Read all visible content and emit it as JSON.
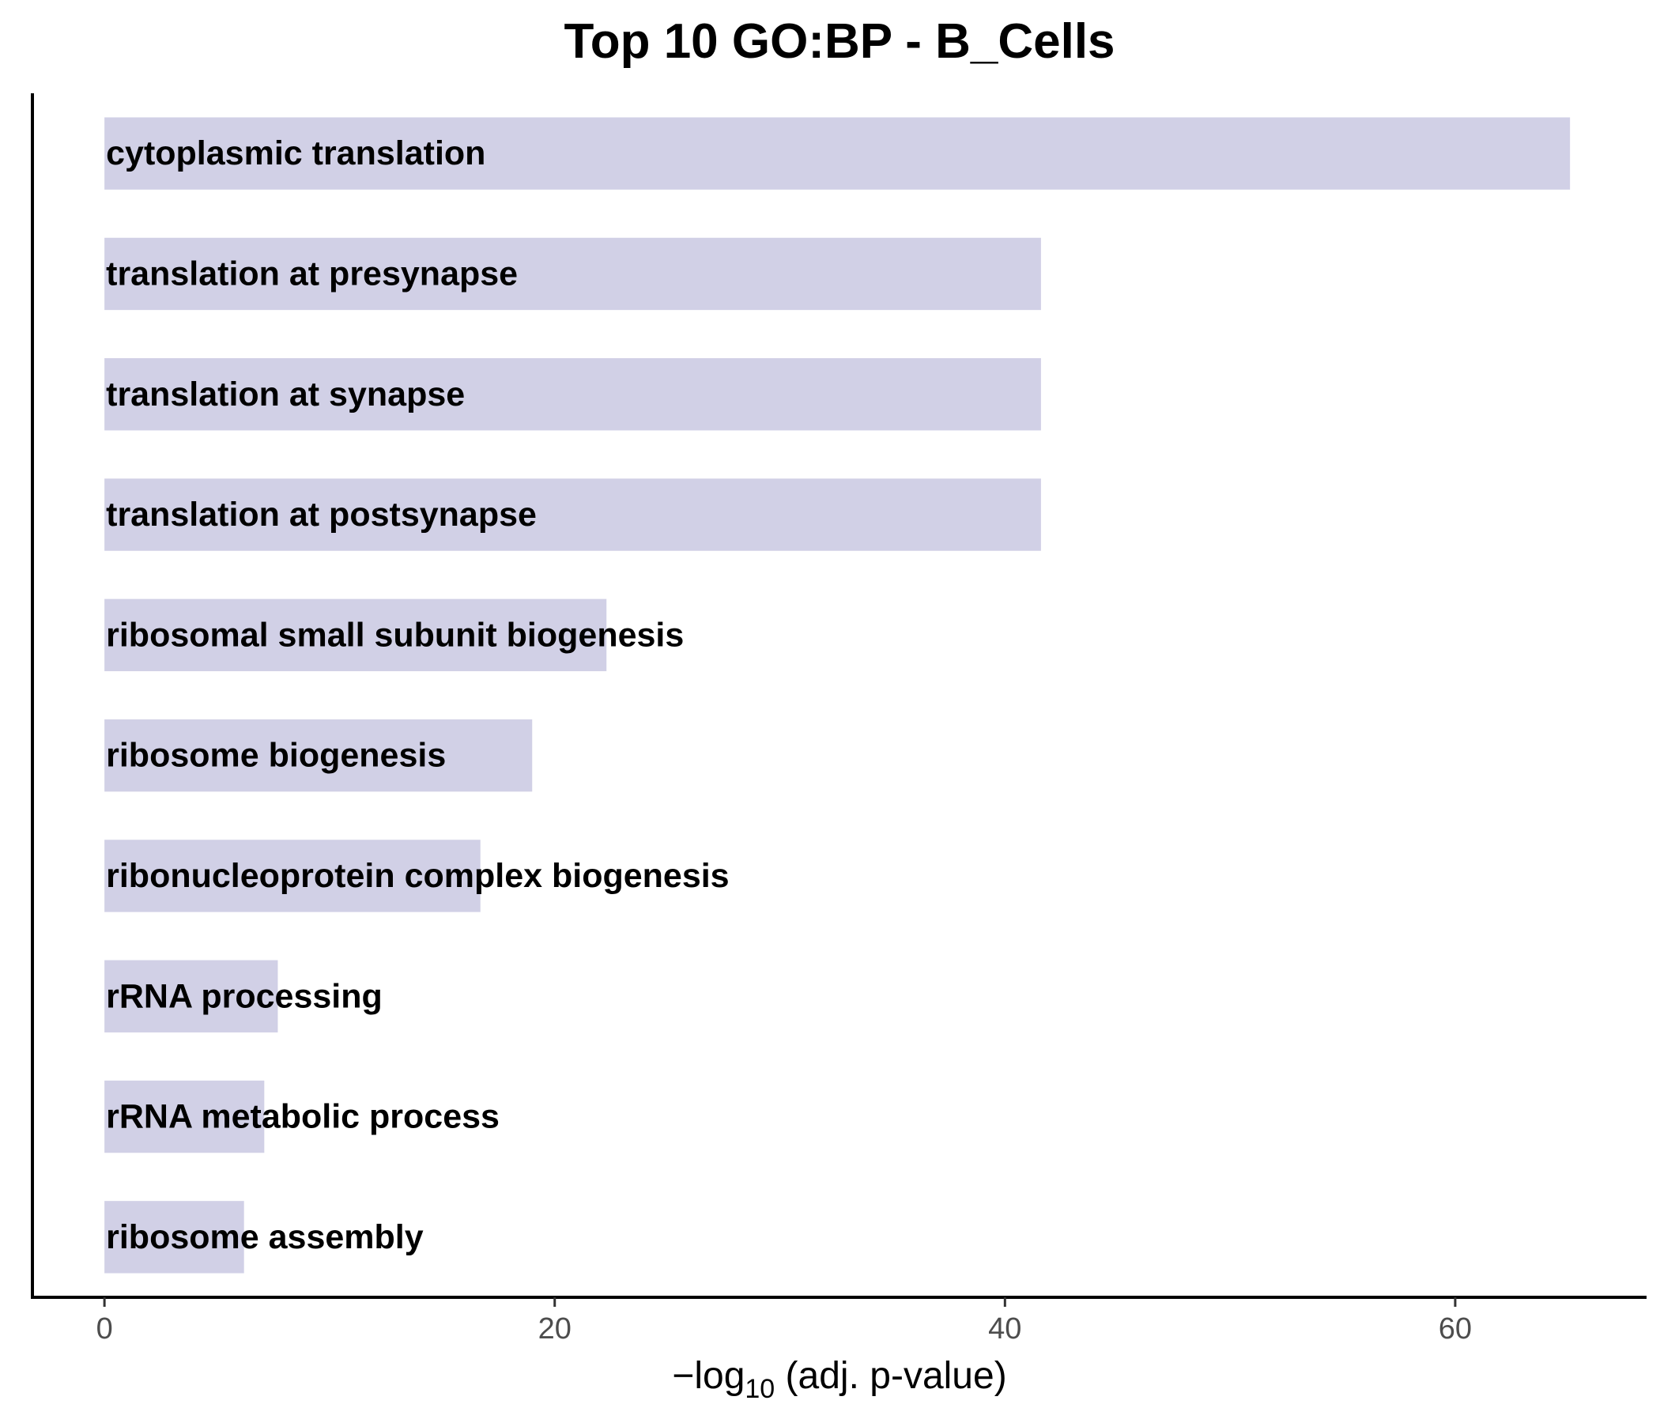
{
  "chart_data": {
    "type": "bar",
    "orientation": "horizontal",
    "title": "Top 10 GO:BP - B_Cells",
    "xlabel": {
      "minus": "−",
      "base": "log",
      "subscript": "10",
      "rest": " (adj. p-value)"
    },
    "ylabel": "",
    "categories": [
      "cytoplasmic translation",
      "translation at presynapse",
      "translation at synapse",
      "translation at postsynapse",
      "ribosomal small subunit biogenesis",
      "ribosome biogenesis",
      "ribonucleoprotein complex biogenesis",
      "rRNA processing",
      "rRNA metabolic process",
      "ribosome assembly"
    ],
    "values": [
      65.1,
      41.6,
      41.6,
      41.6,
      22.3,
      19.0,
      16.7,
      7.7,
      7.1,
      6.2
    ],
    "xlim": [
      -3.2,
      68.5
    ],
    "xticks": [
      0,
      20,
      40,
      60
    ],
    "bar_color": "#d1d0e6",
    "grid": false,
    "legend": "none"
  }
}
